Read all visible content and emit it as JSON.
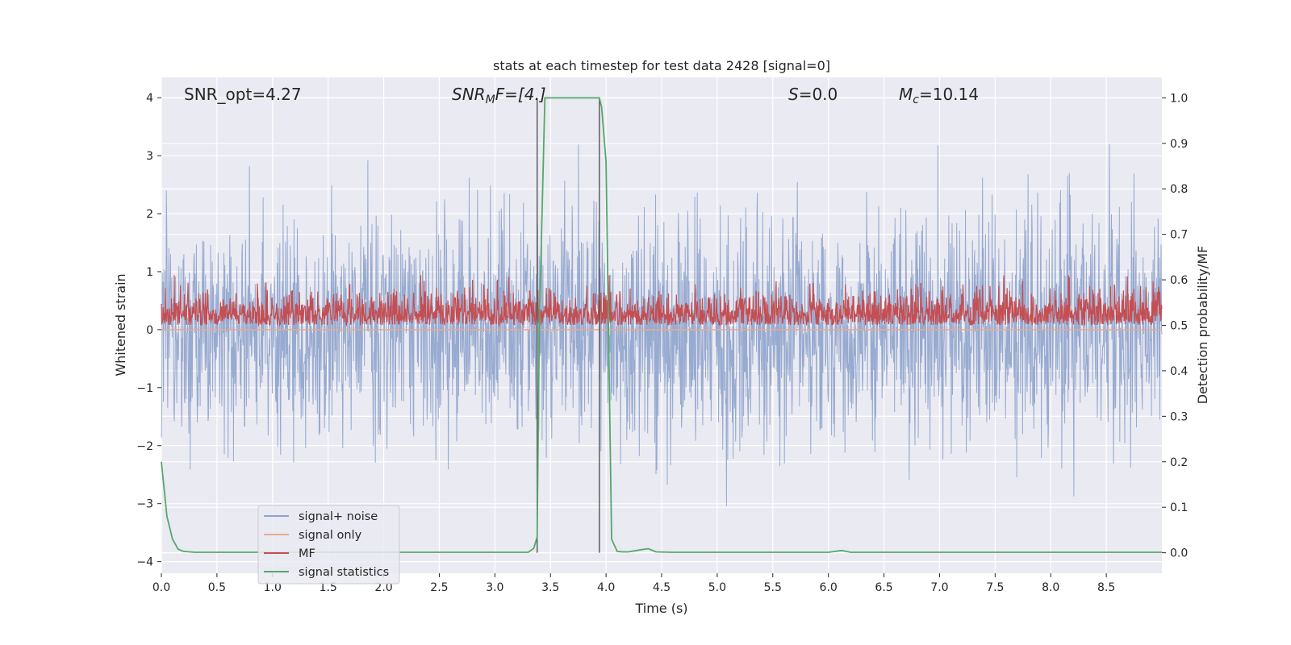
{
  "chart_data": {
    "type": "line",
    "title": "stats at each timestep for test data 2428 [signal=0]",
    "xlabel": "Time (s)",
    "ylabel": "Whitened strain",
    "ylabel_right": "Detection probability/MF",
    "xlim": [
      0.0,
      9.0
    ],
    "ylim": [
      -4.2,
      4.35
    ],
    "ylim_right": [
      -0.045,
      1.045
    ],
    "xticks": [
      0.0,
      0.5,
      1.0,
      1.5,
      2.0,
      2.5,
      3.0,
      3.5,
      4.0,
      4.5,
      5.0,
      5.5,
      6.0,
      6.5,
      7.0,
      7.5,
      8.0,
      8.5
    ],
    "xtick_labels": [
      "0.0",
      "0.5",
      "1.0",
      "1.5",
      "2.0",
      "2.5",
      "3.0",
      "3.5",
      "4.0",
      "4.5",
      "5.0",
      "5.5",
      "6.0",
      "6.5",
      "7.0",
      "7.5",
      "8.0",
      "8.5"
    ],
    "yticks": [
      4,
      3,
      2,
      1,
      0,
      -1,
      -2,
      -3,
      -4
    ],
    "ytick_labels": [
      "4",
      "3",
      "2",
      "1",
      "0",
      "−1",
      "−2",
      "−3",
      "−4"
    ],
    "yticks_right": [
      1.0,
      0.9,
      0.8,
      0.7,
      0.6,
      0.5,
      0.4,
      0.3,
      0.2,
      0.1,
      0.0
    ],
    "ytick_labels_right": [
      "1.0",
      "0.9",
      "0.8",
      "0.7",
      "0.6",
      "0.5",
      "0.4",
      "0.3",
      "0.2",
      "0.1",
      "0.0"
    ],
    "annotations": {
      "snr_opt": "SNR_opt=4.27",
      "snr_mf_base": "SNR",
      "snr_mf_sub": "M",
      "snr_mf_rest": "F=[4.]",
      "s_italic": "S",
      "s_rest": "=0.0",
      "mc_base": "M",
      "mc_sub": "c",
      "mc_rest": "=10.14"
    },
    "vlines_x": [
      3.38,
      3.94
    ],
    "grid": true,
    "legend_position": "lower-left",
    "series": [
      {
        "name": "signal+ noise",
        "axis": "left",
        "color": "#8ea3cc",
        "noise": {
          "amplitude_sigma": 1.0,
          "typical_peak": 2.6,
          "max_value": 3.55,
          "min_value": -3.85
        }
      },
      {
        "name": "signal only",
        "axis": "left",
        "color": "#e9a98f",
        "x": [
          0.0,
          9.0
        ],
        "y": [
          0.0,
          0.0
        ]
      },
      {
        "name": "MF",
        "axis": "right",
        "color": "#c44e52",
        "noise": {
          "base": 0.5,
          "typical_low": 0.49,
          "typical_high": 0.57,
          "max_value": 0.61
        }
      },
      {
        "name": "signal statistics",
        "axis": "right",
        "color": "#55a868",
        "x": [
          0.0,
          0.05,
          0.1,
          0.15,
          0.2,
          0.3,
          0.5,
          1.0,
          2.0,
          3.0,
          3.3,
          3.35,
          3.38,
          3.4,
          3.45,
          3.5,
          3.9,
          3.94,
          3.96,
          4.0,
          4.05,
          4.1,
          4.15,
          4.2,
          4.3,
          4.38,
          4.45,
          4.6,
          5.0,
          6.0,
          6.12,
          6.2,
          6.5,
          7.0,
          8.0,
          9.0
        ],
        "y": [
          0.2,
          0.08,
          0.03,
          0.008,
          0.003,
          0.001,
          0.001,
          0.001,
          0.001,
          0.001,
          0.001,
          0.01,
          0.035,
          0.5,
          1.0,
          1.0,
          1.0,
          1.0,
          0.98,
          0.86,
          0.03,
          0.003,
          0.002,
          0.002,
          0.006,
          0.009,
          0.002,
          0.001,
          0.001,
          0.001,
          0.005,
          0.001,
          0.001,
          0.001,
          0.001,
          0.001
        ]
      }
    ]
  }
}
